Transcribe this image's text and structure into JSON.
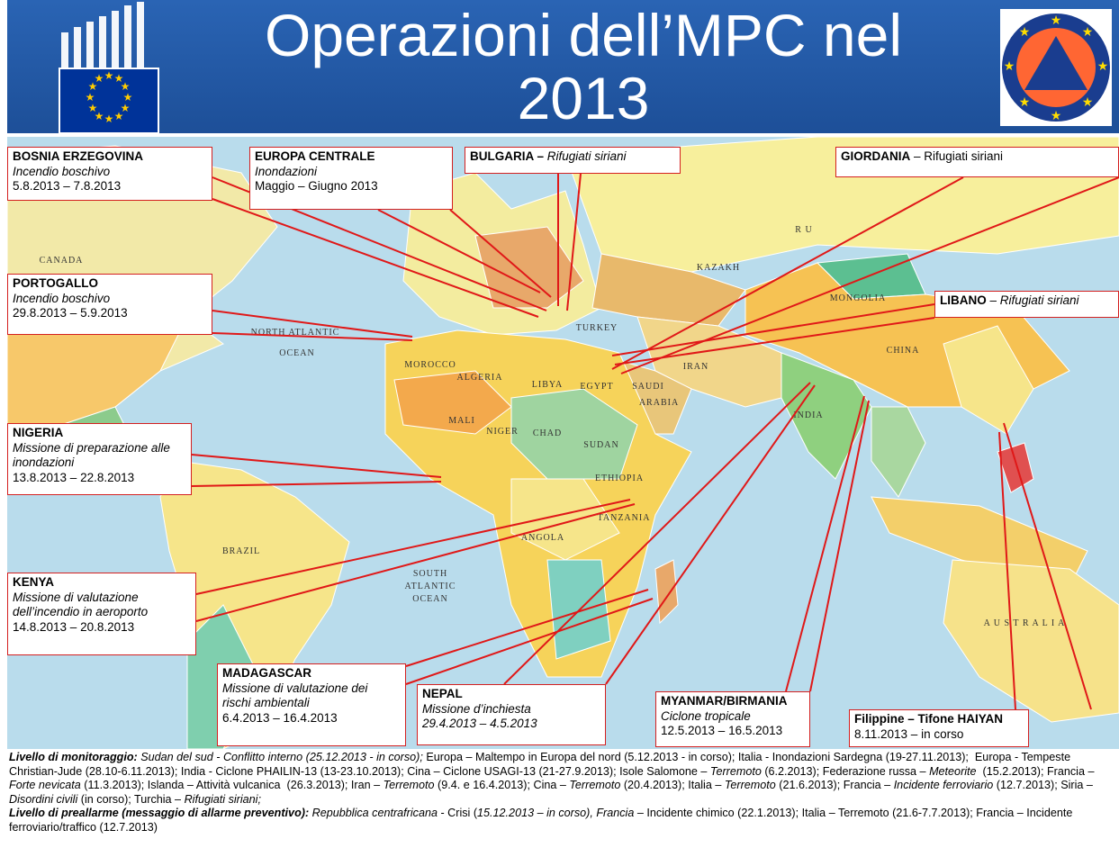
{
  "header": {
    "title_lines": [
      "Operazioni dell’MPC nel",
      "2013"
    ]
  },
  "callouts": [
    {
      "lines": [
        [
          {
            "text": "BOSNIA ERZEGOVINA",
            "style": "b"
          }
        ],
        [
          {
            "text": "Incendio boschivo",
            "style": "i"
          }
        ],
        [
          {
            "text": "5.8.2013 – 7.8.2013",
            "style": "n"
          }
        ]
      ]
    },
    {
      "lines": [
        [
          {
            "text": "EUROPA CENTRALE",
            "style": "b"
          }
        ],
        [
          {
            "text": "Inondazioni",
            "style": "i"
          }
        ],
        [
          {
            "text": "Maggio – Giugno 2013",
            "style": "n"
          }
        ]
      ]
    },
    {
      "lines": [
        [
          {
            "text": "BULGARIA – ",
            "style": "b"
          },
          {
            "text": "Rifugiati siriani",
            "style": "i"
          }
        ]
      ]
    },
    {
      "lines": [
        [
          {
            "text": "GIORDANIA",
            "style": "b"
          },
          {
            "text": " – Rifugiati siriani",
            "style": "n"
          }
        ]
      ]
    },
    {
      "lines": [
        [
          {
            "text": "PORTOGALLO",
            "style": "b"
          }
        ],
        [
          {
            "text": "Incendio boschivo",
            "style": "i"
          }
        ],
        [
          {
            "text": "29.8.2013 – 5.9.2013",
            "style": "n"
          }
        ]
      ]
    },
    {
      "lines": [
        [
          {
            "text": "LIBANO",
            "style": "b"
          },
          {
            "text": " – ",
            "style": "n"
          },
          {
            "text": "Rifugiati siriani",
            "style": "i"
          }
        ]
      ]
    },
    {
      "lines": [
        [
          {
            "text": "NIGERIA",
            "style": "b"
          }
        ],
        [
          {
            "text": "Missione di preparazione alle",
            "style": "i"
          }
        ],
        [
          {
            "text": "inondazioni",
            "style": "i"
          }
        ],
        [
          {
            "text": "13.8.2013 – 22.8.2013",
            "style": "n"
          }
        ]
      ]
    },
    {
      "lines": [
        [
          {
            "text": "KENYA",
            "style": "b"
          }
        ],
        [
          {
            "text": "Missione di valutazione",
            "style": "i"
          }
        ],
        [
          {
            "text": "dell’incendio in aeroporto",
            "style": "i"
          }
        ],
        [
          {
            "text": "14.8.2013 – 20.8.2013",
            "style": "n"
          }
        ]
      ]
    },
    {
      "lines": [
        [
          {
            "text": "MADAGASCAR",
            "style": "b"
          }
        ],
        [
          {
            "text": "Missione di valutazione dei",
            "style": "i"
          }
        ],
        [
          {
            "text": "rischi ambientali",
            "style": "i"
          }
        ],
        [
          {
            "text": "6.4.2013 – 16.4.2013",
            "style": "n"
          }
        ]
      ]
    },
    {
      "lines": [
        [
          {
            "text": "NEPAL",
            "style": "b"
          }
        ],
        [
          {
            "text": "Missione d’inchiesta",
            "style": "i"
          }
        ],
        [
          {
            "text": "29.4.2013 – 4.5.2013",
            "style": "i"
          }
        ]
      ]
    },
    {
      "lines": [
        [
          {
            "text": "MYANMAR/BIRMANIA",
            "style": "b"
          }
        ],
        [
          {
            "text": "Ciclone tropicale",
            "style": "i"
          }
        ],
        [
          {
            "text": "12.5.2013 – 16.5.2013",
            "style": "n"
          }
        ]
      ]
    },
    {
      "lines": [
        [
          {
            "text": "Filippine – Tifone HAIYAN",
            "style": "b"
          }
        ],
        [
          {
            "text": "8.11.2013 – in corso",
            "style": "n"
          }
        ]
      ]
    }
  ],
  "map": {
    "labels": [
      "CANADA",
      "NORTH ATLANTIC",
      "OCEAN",
      "BRAZIL",
      "SOUTH",
      "ATLANTIC",
      "OCEAN",
      "ALGERIA",
      "LIBYA",
      "EGYPT",
      "MALI",
      "NIGER",
      "CHAD",
      "SUDAN",
      "ETHIOPIA",
      "ANGOLA",
      "TANZANIA",
      "MOROCCO",
      "TURKEY",
      "SAUDI",
      "ARABIA",
      "IRAN",
      "INDIA",
      "CHINA",
      "MONGOLIA",
      "KAZAKH",
      "R U",
      "A U S T R A L I A"
    ]
  },
  "footer": {
    "paragraphs": [
      [
        {
          "text": "Livello di monitoraggio:",
          "style": "bi"
        },
        {
          "text": " Sudan del sud - Conflitto interno (25.12.2013 - in corso);",
          "style": "i"
        },
        {
          "text": " Europa – Maltempo in Europa del nord (5.12.2013 - in corso); Italia - Inondazioni Sardegna (19-27.11.2013);  Europa - Tempeste Christian-Jude (28.10-6.11.2013); India - Ciclone PHAILIN-13 (13-23.10.2013); Cina – Ciclone USAGI-13 (21-27.9.2013); Isole Salomone – ",
          "style": "n"
        },
        {
          "text": "Terremoto",
          "style": "i"
        },
        {
          "text": " (6.2.2013); Federazione russa – ",
          "style": "n"
        },
        {
          "text": "Meteorite",
          "style": "i"
        },
        {
          "text": "  (15.2.2013); Francia – ",
          "style": "n"
        },
        {
          "text": "Forte nevicata",
          "style": "i"
        },
        {
          "text": " (11.3.2013); Islanda – Attività vulcanica  (26.3.2013); Iran – ",
          "style": "n"
        },
        {
          "text": "Terremoto",
          "style": "i"
        },
        {
          "text": " (9.4. e 16.4.2013); Cina – ",
          "style": "n"
        },
        {
          "text": "Terremoto",
          "style": "i"
        },
        {
          "text": " (20.4.2013); Italia – ",
          "style": "n"
        },
        {
          "text": "Terremoto",
          "style": "i"
        },
        {
          "text": " (21.6.2013); Francia – ",
          "style": "n"
        },
        {
          "text": "Incidente ferroviario",
          "style": "i"
        },
        {
          "text": " (12.7.2013); Siria – ",
          "style": "n"
        },
        {
          "text": "Disordini civili",
          "style": "i"
        },
        {
          "text": " (in corso); Turchia – ",
          "style": "n"
        },
        {
          "text": "Rifugiati siriani;",
          "style": "i"
        }
      ],
      [
        {
          "text": "Livello di preallarme (messaggio di allarme preventivo):",
          "style": "bi"
        },
        {
          "text": " Repubblica centrafricana",
          "style": "i"
        },
        {
          "text": " - Crisi (",
          "style": "n"
        },
        {
          "text": "15.12.2013 – in corso), Francia",
          "style": "i"
        },
        {
          "text": " – Incidente chimico (22.1.2013); Italia – Terremoto (21.6-7.7.2013); Francia – Incidente ferroviario/traffico (12.7.2013)",
          "style": "n"
        }
      ]
    ]
  }
}
